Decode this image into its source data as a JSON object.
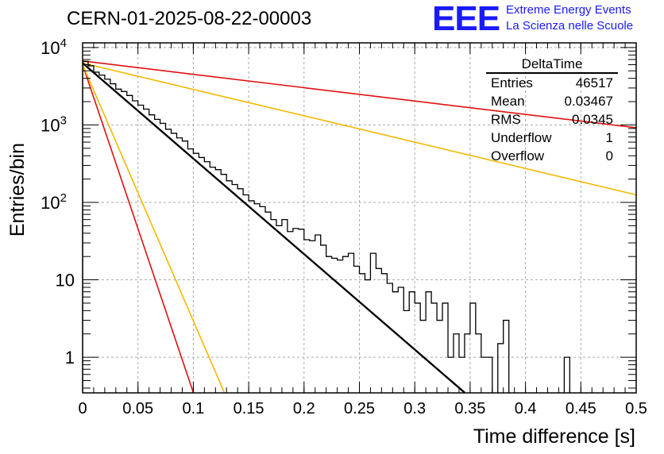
{
  "header": {
    "run_title": "CERN-01-2025-08-22-00003",
    "logo_text": "EEE",
    "logo_line1": "Extreme Energy Events",
    "logo_line2": "La Scienza nelle Scuole",
    "logo_color": "#1a1aff"
  },
  "stats_box": {
    "title": "DeltaTime",
    "rows": [
      {
        "label": "Entries",
        "value": "46517"
      },
      {
        "label": "Mean",
        "value": "0.03467"
      },
      {
        "label": "RMS",
        "value": "0.0345"
      },
      {
        "label": "Underflow",
        "value": "1"
      },
      {
        "label": "Overflow",
        "value": "0"
      }
    ]
  },
  "chart_data": {
    "type": "histogram",
    "title": "CERN-01-2025-08-22-00003",
    "xlabel": "Time difference [s]",
    "ylabel": "Entries/bin",
    "xlim": [
      0,
      0.5
    ],
    "ylim_log10": [
      -0.46,
      4.06
    ],
    "yscale": "log",
    "grid": true,
    "x_ticks": [
      {
        "value": 0,
        "label": "0"
      },
      {
        "value": 0.05,
        "label": "0.05"
      },
      {
        "value": 0.1,
        "label": "0.1"
      },
      {
        "value": 0.15,
        "label": "0.15"
      },
      {
        "value": 0.2,
        "label": "0.2"
      },
      {
        "value": 0.25,
        "label": "0.25"
      },
      {
        "value": 0.3,
        "label": "0.3"
      },
      {
        "value": 0.35,
        "label": "0.35"
      },
      {
        "value": 0.4,
        "label": "0.4"
      },
      {
        "value": 0.45,
        "label": "0.45"
      },
      {
        "value": 0.5,
        "label": "0.5"
      }
    ],
    "y_ticks": [
      {
        "exp": 0,
        "label": "1",
        "sup": ""
      },
      {
        "exp": 1,
        "label": "10",
        "sup": ""
      },
      {
        "exp": 2,
        "label": "10",
        "sup": "2"
      },
      {
        "exp": 3,
        "label": "10",
        "sup": "3"
      },
      {
        "exp": 4,
        "label": "10",
        "sup": "4"
      }
    ],
    "histogram": {
      "name": "DeltaTime",
      "color": "#000000",
      "bin_width": 0.005,
      "bin_start": 0,
      "counts": [
        6600,
        5800,
        4800,
        4400,
        3900,
        3400,
        2900,
        2700,
        2400,
        2050,
        1800,
        1600,
        1350,
        1180,
        1050,
        880,
        780,
        680,
        620,
        490,
        430,
        380,
        335,
        285,
        265,
        230,
        190,
        170,
        150,
        125,
        105,
        96,
        88,
        75,
        60,
        50,
        60,
        42,
        46,
        45,
        33,
        32,
        38,
        28,
        20,
        19,
        18,
        20,
        22,
        15,
        12,
        10,
        22,
        14,
        12,
        9,
        7,
        8,
        4,
        7,
        5,
        3,
        7,
        5,
        3,
        5,
        1,
        2,
        1,
        2,
        5,
        2,
        1,
        1,
        0.3,
        1.5,
        3,
        0.3,
        0.3,
        0.3,
        0.3,
        0.3,
        0.3,
        0.3,
        0.3,
        0.3,
        0.3,
        1,
        0.3,
        0.3,
        0.3,
        0.3,
        0.3,
        0.3,
        0.3,
        0.3,
        0.3,
        0.3,
        0.3,
        0.3
      ]
    },
    "fit_lines": [
      {
        "name": "fit",
        "color": "#000000",
        "width": 2.2,
        "x0": 0,
        "y0": 6300,
        "x1": 0.345,
        "y1": 0.35
      },
      {
        "name": "red-steep",
        "color": "#e01010",
        "width": 1.6,
        "x0": 0,
        "y0": 6000,
        "x1": 0.1,
        "y1": 0.35
      },
      {
        "name": "orange-steep",
        "color": "#f5b800",
        "width": 1.6,
        "x0": 0,
        "y0": 6000,
        "x1": 0.128,
        "y1": 0.35
      },
      {
        "name": "red-shallow",
        "color": "#e01010",
        "width": 1.6,
        "x0": 0,
        "y0": 6700,
        "x1": 0.5,
        "y1": 920
      },
      {
        "name": "orange-shallow",
        "color": "#f5b800",
        "width": 1.6,
        "x0": 0,
        "y0": 6300,
        "x1": 0.5,
        "y1": 125
      }
    ]
  }
}
